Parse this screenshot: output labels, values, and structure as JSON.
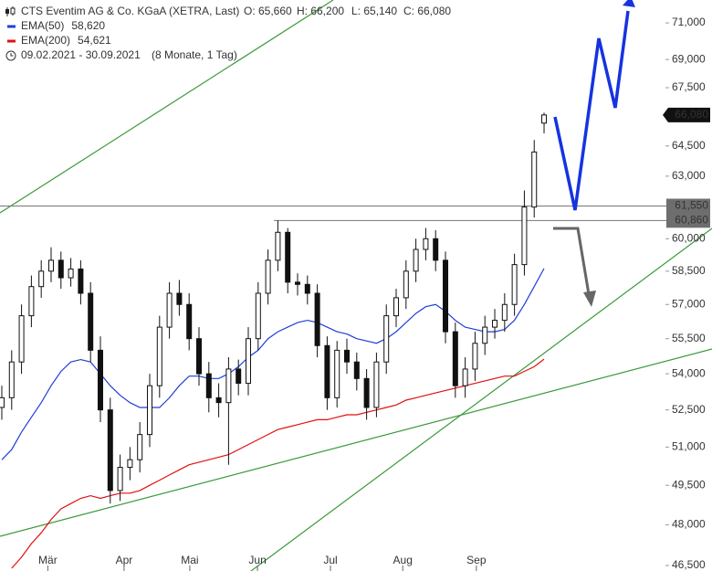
{
  "chart_data": {
    "type": "candlestick",
    "header": {
      "title": "CTS Eventim AG & Co. KGaA (XETRA, Last)",
      "open": "O: 65,660",
      "high": "H: 66,200",
      "low": "L: 65,140",
      "close": "C: 66,080",
      "period": "09.02.2021 - 30.09.2021",
      "duration": "(8 Monate, 1 Tag)"
    },
    "log_scale": true,
    "ylim": [
      46300,
      72280
    ],
    "xlim": [
      -0.55,
      216.1
    ],
    "yticks": [
      {
        "value": 46500,
        "label": "46,500"
      },
      {
        "value": 48000,
        "label": "48,000"
      },
      {
        "value": 49500,
        "label": "49,500"
      },
      {
        "value": 51000,
        "label": "51,000"
      },
      {
        "value": 52500,
        "label": "52,500"
      },
      {
        "value": 54000,
        "label": "54,000"
      },
      {
        "value": 55500,
        "label": "55,500"
      },
      {
        "value": 57000,
        "label": "57,000"
      },
      {
        "value": 58500,
        "label": "58,500"
      },
      {
        "value": 60000,
        "label": "60,000"
      },
      {
        "value": 63000,
        "label": "63,000"
      },
      {
        "value": 64500,
        "label": "64,500"
      },
      {
        "value": 67500,
        "label": "67,500"
      },
      {
        "value": 69000,
        "label": "69,000"
      },
      {
        "value": 71000,
        "label": "71,000"
      }
    ],
    "xticks": [
      {
        "value": 14,
        "label": "Mär"
      },
      {
        "value": 37.2,
        "label": "Apr"
      },
      {
        "value": 57.2,
        "label": "Mai"
      },
      {
        "value": 77.8,
        "label": "Jun"
      },
      {
        "value": 100,
        "label": "Jul"
      },
      {
        "value": 122,
        "label": "Aug"
      },
      {
        "value": 144.4,
        "label": "Sep"
      }
    ],
    "x": [
      0,
      3,
      6,
      9,
      12,
      15,
      18,
      21,
      24,
      27,
      30,
      33,
      36,
      39,
      42,
      45,
      48,
      51,
      54,
      57,
      60,
      63,
      66,
      69,
      72,
      75,
      78,
      81,
      84,
      87,
      90,
      93,
      96,
      99,
      102,
      105,
      108,
      111,
      114,
      117,
      120,
      123,
      126,
      129,
      132,
      135,
      138,
      141,
      144,
      147,
      150,
      153,
      156,
      159,
      162,
      165
    ],
    "open": [
      52600,
      53000,
      54500,
      56500,
      57800,
      58500,
      59000,
      58200,
      58600,
      57500,
      55000,
      52500,
      49300,
      50200,
      50500,
      51500,
      53500,
      56000,
      57500,
      57000,
      55500,
      54000,
      53000,
      52800,
      54200,
      53600,
      55500,
      57500,
      59000,
      60300,
      58000,
      57900,
      57500,
      55200,
      53000,
      55000,
      54500,
      53800,
      52600,
      54500,
      56500,
      57300,
      58500,
      59500,
      60000,
      59000,
      55800,
      53500,
      54200,
      55300,
      56000,
      56300,
      57000,
      58800,
      61500,
      65660
    ],
    "high": [
      53500,
      55000,
      57000,
      58300,
      59000,
      59600,
      59400,
      59100,
      59000,
      58000,
      55600,
      53000,
      50700,
      51000,
      52000,
      54000,
      56500,
      58000,
      58100,
      57500,
      56000,
      54500,
      53600,
      54700,
      54600,
      56000,
      58000,
      59500,
      60860,
      60500,
      58400,
      58300,
      57900,
      55600,
      55400,
      55500,
      54900,
      54200,
      54900,
      57000,
      57700,
      59000,
      60000,
      60500,
      60400,
      59400,
      56200,
      54700,
      55800,
      56500,
      56800,
      57500,
      59300,
      62300,
      64800,
      66200
    ],
    "low": [
      52100,
      52500,
      54000,
      56000,
      57300,
      58000,
      57700,
      57800,
      57000,
      54500,
      52000,
      48800,
      48900,
      49700,
      50000,
      51000,
      53000,
      55500,
      56500,
      55000,
      53500,
      52400,
      52200,
      50300,
      53100,
      53100,
      55000,
      57000,
      58500,
      57500,
      57400,
      57000,
      54700,
      52500,
      52600,
      54000,
      53300,
      52100,
      52200,
      54000,
      56000,
      56800,
      58000,
      59000,
      58500,
      55300,
      53000,
      53000,
      53700,
      54800,
      55500,
      55800,
      56500,
      58300,
      61000,
      65140
    ],
    "close": [
      53000,
      54500,
      56500,
      57800,
      58500,
      59000,
      58200,
      58600,
      57500,
      55000,
      52500,
      49300,
      50200,
      50500,
      51500,
      53500,
      56000,
      57500,
      57000,
      55500,
      54000,
      53000,
      52800,
      54200,
      53600,
      55500,
      57500,
      59000,
      60300,
      58000,
      57900,
      57500,
      55200,
      53000,
      55000,
      54500,
      53800,
      52600,
      54500,
      56500,
      57300,
      58500,
      59500,
      60000,
      59000,
      55800,
      53500,
      54200,
      55300,
      56000,
      56300,
      57000,
      58800,
      61500,
      64200,
      66080
    ],
    "series": [
      {
        "name": "EMA(50)",
        "value_label": "58,620",
        "color": "#1f3fd6",
        "values": [
          50500,
          50900,
          51600,
          52200,
          52800,
          53500,
          54100,
          54500,
          54600,
          54500,
          54000,
          53500,
          53100,
          52800,
          52600,
          52600,
          52600,
          53000,
          53500,
          53900,
          53900,
          53800,
          53800,
          54000,
          54300,
          54700,
          55000,
          55500,
          55800,
          56000,
          56200,
          56300,
          56200,
          56000,
          55800,
          55700,
          55500,
          55400,
          55300,
          55500,
          55800,
          56200,
          56600,
          56900,
          57000,
          56700,
          56300,
          56000,
          55900,
          55800,
          55800,
          55900,
          56300,
          57000,
          57800,
          58620
        ]
      },
      {
        "name": "EMA(200)",
        "value_label": "54,621",
        "color": "#e01010",
        "values": [
          null,
          46400,
          46800,
          47300,
          47700,
          48200,
          48600,
          48800,
          49000,
          49100,
          49000,
          49100,
          49200,
          49200,
          49300,
          49500,
          49700,
          49900,
          50100,
          50300,
          50400,
          50500,
          50600,
          50700,
          50900,
          51100,
          51300,
          51500,
          51700,
          51800,
          51900,
          52000,
          52100,
          52100,
          52200,
          52300,
          52300,
          52400,
          52500,
          52600,
          52700,
          52900,
          53000,
          53100,
          53200,
          53300,
          53400,
          53500,
          53600,
          53700,
          53800,
          53900,
          53900,
          54100,
          54300,
          54621
        ]
      }
    ],
    "hlines": [
      {
        "value": 61550,
        "label": "61,550"
      },
      {
        "value": 60860,
        "label": "60,860"
      }
    ],
    "last_price": {
      "value": 66080,
      "label": "66,080"
    }
  }
}
